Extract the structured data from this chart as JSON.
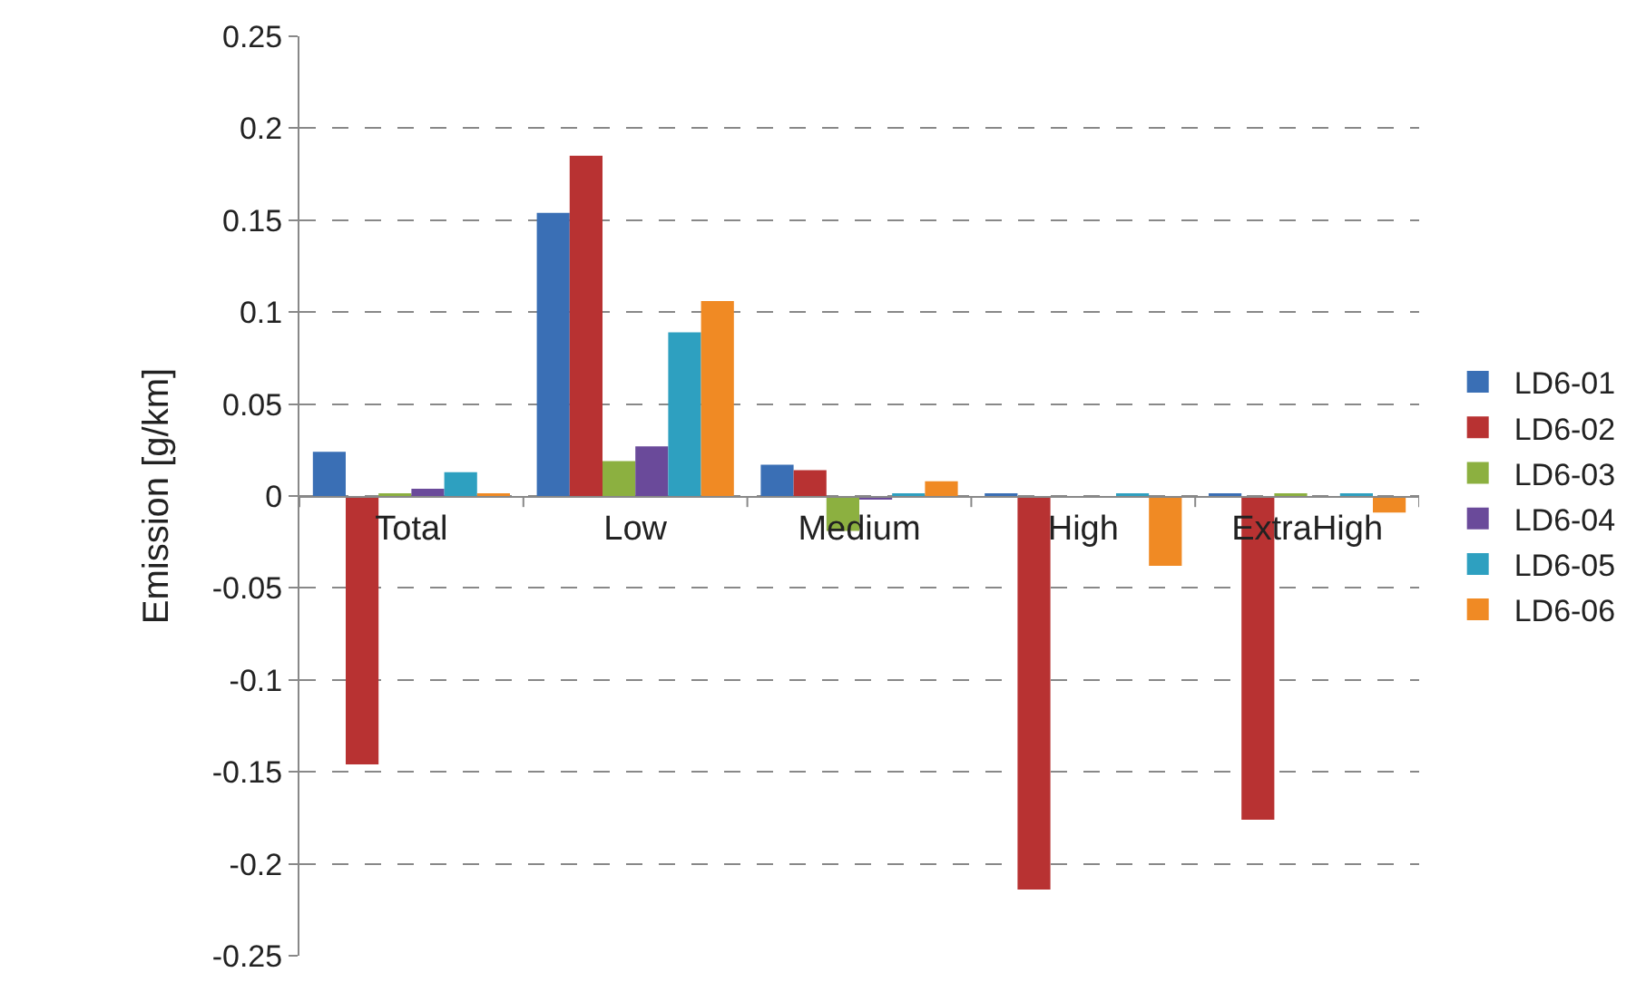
{
  "chart_data": {
    "type": "bar",
    "ylabel": "Emission [g/km]",
    "categories": [
      "Total",
      "Low",
      "Medium",
      "High",
      "ExtraHigh"
    ],
    "series": [
      {
        "name": "LD6-01",
        "color": "#3a6fb5",
        "values": [
          0.024,
          0.154,
          0.017,
          0.001,
          0.001
        ]
      },
      {
        "name": "LD6-02",
        "color": "#b83232",
        "values": [
          -0.146,
          0.185,
          0.014,
          -0.214,
          -0.176
        ]
      },
      {
        "name": "LD6-03",
        "color": "#8cb040",
        "values": [
          0.001,
          0.019,
          -0.019,
          0,
          0.001
        ]
      },
      {
        "name": "LD6-04",
        "color": "#6a4a9a",
        "values": [
          0.004,
          0.027,
          -0.002,
          0,
          0
        ]
      },
      {
        "name": "LD6-05",
        "color": "#2ea0c0",
        "values": [
          0.013,
          0.089,
          0.001,
          0.001,
          0.001
        ]
      },
      {
        "name": "LD6-06",
        "color": "#f08a24",
        "values": [
          0.001,
          0.106,
          0.008,
          -0.038,
          -0.009
        ]
      }
    ],
    "ylim": [
      -0.25,
      0.25
    ],
    "yticks": [
      -0.25,
      -0.2,
      -0.15,
      -0.1,
      -0.05,
      0,
      0.05,
      0.1,
      0.15,
      0.2,
      0.25
    ],
    "grid": "y",
    "legend": "right"
  }
}
